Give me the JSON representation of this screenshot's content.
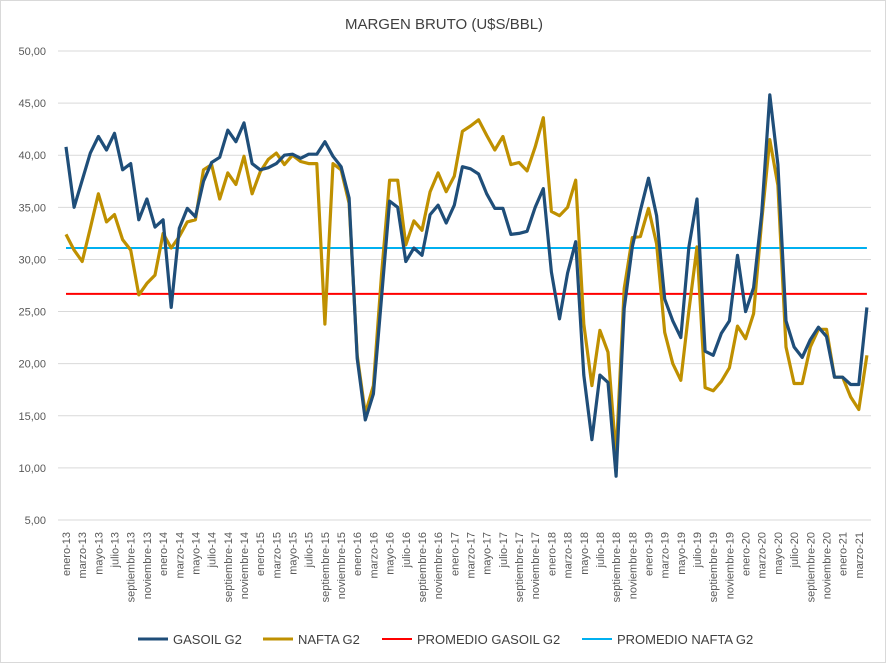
{
  "chart_data": {
    "type": "line",
    "title": "MARGEN BRUTO (U$S/BBL)",
    "xlabel": "",
    "ylabel": "",
    "ylim": [
      5,
      50
    ],
    "y_ticks": [
      "5,00",
      "10,00",
      "15,00",
      "20,00",
      "25,00",
      "30,00",
      "35,00",
      "40,00",
      "45,00",
      "50,00"
    ],
    "y_tick_values": [
      5,
      10,
      15,
      20,
      25,
      30,
      35,
      40,
      45,
      50
    ],
    "grid": true,
    "legend_position": "bottom",
    "x_note": "monthly from enero-13 to abril-21; labels shown every 2 months",
    "x_tick_labels": [
      "enero-13",
      "marzo-13",
      "mayo-13",
      "julio-13",
      "septiembre-13",
      "noviembre-13",
      "enero-14",
      "marzo-14",
      "mayo-14",
      "julio-14",
      "septiembre-14",
      "noviembre-14",
      "enero-15",
      "marzo-15",
      "mayo-15",
      "julio-15",
      "septiembre-15",
      "noviembre-15",
      "enero-16",
      "marzo-16",
      "mayo-16",
      "julio-16",
      "septiembre-16",
      "noviembre-16",
      "enero-17",
      "marzo-17",
      "mayo-17",
      "julio-17",
      "septiembre-17",
      "noviembre-17",
      "enero-18",
      "marzo-18",
      "mayo-18",
      "julio-18",
      "septiembre-18",
      "noviembre-18",
      "enero-19",
      "marzo-19",
      "mayo-19",
      "julio-19",
      "septiembre-19",
      "noviembre-19",
      "enero-20",
      "marzo-20",
      "mayo-20",
      "julio-20",
      "septiembre-20",
      "noviembre-20",
      "enero-21",
      "marzo-21"
    ],
    "series": [
      {
        "name": "GASOIL G2",
        "color": "#1f4e79",
        "values": [
          40.8,
          35.0,
          37.6,
          40.2,
          41.8,
          40.5,
          42.1,
          38.6,
          39.2,
          33.8,
          35.8,
          33.1,
          33.8,
          25.4,
          33.0,
          34.9,
          34.1,
          37.5,
          39.3,
          39.8,
          42.4,
          41.3,
          43.1,
          39.2,
          38.6,
          38.8,
          39.2,
          40.0,
          40.1,
          39.7,
          40.1,
          40.1,
          41.3,
          39.9,
          38.9,
          35.9,
          20.5,
          14.6,
          17.1,
          26.3,
          35.6,
          35.0,
          29.8,
          31.1,
          30.4,
          34.3,
          35.2,
          33.5,
          35.2,
          38.9,
          38.7,
          38.2,
          36.3,
          34.9,
          34.9,
          32.4,
          32.5,
          32.7,
          35.0,
          36.8,
          28.8,
          24.3,
          28.7,
          31.7,
          18.9,
          12.7,
          18.9,
          18.2,
          9.2,
          25.3,
          31.2,
          34.7,
          37.8,
          34.2,
          26.2,
          24.1,
          22.5,
          31.2,
          35.8,
          21.2,
          20.8,
          22.9,
          24.1,
          30.4,
          25.0,
          27.3,
          34.4,
          45.8,
          39.1,
          24.1,
          21.6,
          20.6,
          22.3,
          23.5,
          22.6,
          18.7,
          18.7,
          18.0,
          18.0,
          25.4
        ]
      },
      {
        "name": "NAFTA G2",
        "color": "#bf9000",
        "values": [
          32.4,
          30.9,
          29.8,
          33.0,
          36.3,
          33.6,
          34.3,
          31.9,
          30.9,
          26.6,
          27.7,
          28.5,
          32.5,
          31.1,
          32.2,
          33.6,
          33.8,
          38.6,
          39.1,
          35.8,
          38.3,
          37.2,
          39.9,
          36.3,
          38.4,
          39.6,
          40.2,
          39.1,
          40.0,
          39.4,
          39.2,
          39.2,
          23.8,
          39.2,
          38.6,
          35.4,
          20.8,
          15.2,
          17.9,
          28.5,
          37.6,
          37.6,
          31.4,
          33.7,
          32.8,
          36.5,
          38.3,
          36.5,
          38.0,
          42.3,
          42.8,
          43.4,
          41.9,
          40.5,
          41.8,
          39.1,
          39.3,
          38.5,
          40.8,
          43.6,
          34.6,
          34.2,
          35.0,
          37.6,
          23.8,
          17.9,
          23.2,
          21.1,
          11.1,
          27.2,
          32.1,
          32.2,
          34.9,
          31.5,
          23.0,
          20.0,
          18.4,
          25.1,
          31.2,
          17.7,
          17.4,
          18.3,
          19.6,
          23.6,
          22.4,
          24.8,
          33.7,
          41.5,
          37.1,
          21.6,
          18.1,
          18.1,
          21.6,
          23.3,
          23.3,
          18.7,
          18.7,
          16.8,
          15.6,
          20.8
        ]
      },
      {
        "name": "PROMEDIO GASOIL G2",
        "color": "#ff0000",
        "constant": 26.7
      },
      {
        "name": "PROMEDIO NAFTA G2",
        "color": "#00b0f0",
        "constant": 31.1
      }
    ]
  }
}
